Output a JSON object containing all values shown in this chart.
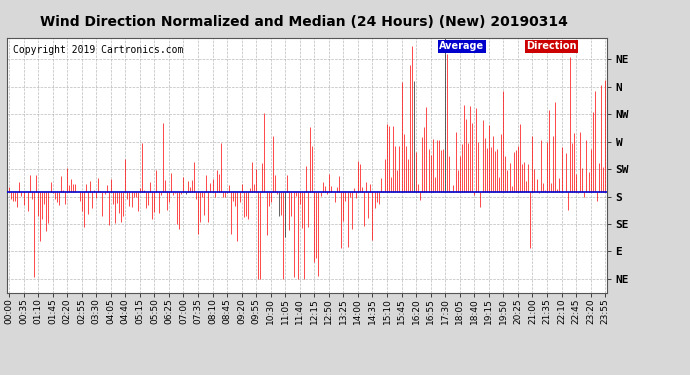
{
  "title": "Wind Direction Normalized and Median (24 Hours) (New) 20190314",
  "copyright": "Copyright 2019 Cartronics.com",
  "ytick_labels": [
    "NE",
    "N",
    "NW",
    "W",
    "SW",
    "S",
    "SE",
    "E",
    "NE"
  ],
  "ytick_values": [
    9,
    8,
    7,
    6,
    5,
    4,
    3,
    2,
    1
  ],
  "average_direction_value": 4.15,
  "average_box_color": "#0000cc",
  "line_color": "#ff0000",
  "dark_line_color": "#222222",
  "bg_color": "#d8d8d8",
  "plot_bg_color": "#ffffff",
  "grid_color": "#aaaaaa",
  "grid_style": "--",
  "title_fontsize": 10,
  "copyright_fontsize": 7,
  "ylabel_fontsize": 8,
  "tick_fontsize": 6.5,
  "legend_avg_color": "#0000cc",
  "legend_dir_color": "#cc0000"
}
